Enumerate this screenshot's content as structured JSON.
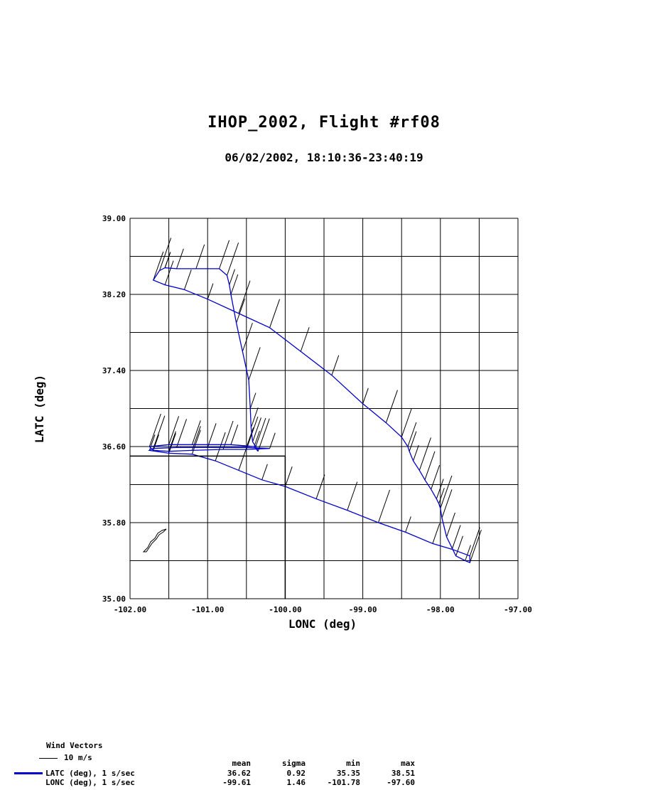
{
  "chart_data": {
    "type": "line",
    "title": "IHOP_2002, Flight #rf08",
    "subtitle": "06/02/2002, 18:10:36-23:40:19",
    "xlabel": "LONC (deg)",
    "ylabel": "LATC (deg)",
    "xlim": [
      -102.0,
      -97.0
    ],
    "ylim": [
      35.0,
      39.0
    ],
    "x_ticks": [
      "-102.00",
      "-101.00",
      "-100.00",
      "-99.00",
      "-98.00",
      "-97.00"
    ],
    "y_ticks": [
      "35.00",
      "35.80",
      "36.60",
      "37.40",
      "38.20",
      "39.00"
    ],
    "grid": true,
    "line_color": "#0000cc",
    "series": [
      {
        "x": [
          -101.55,
          -101.4,
          -101.15,
          -100.85,
          -100.75,
          -100.72,
          -100.7,
          -100.63,
          -100.55,
          -100.47,
          -100.45,
          -100.44,
          -100.42,
          -100.38,
          -100.35,
          -100.4,
          -100.7,
          -101.2,
          -101.5,
          -101.75,
          -101.7,
          -101.5,
          -101.2,
          -100.8,
          -100.5,
          -100.2,
          -100.5,
          -101.0,
          -101.4,
          -101.7,
          -101.75,
          -101.5,
          -101.2,
          -100.9,
          -100.6,
          -100.3,
          -100.0,
          -99.6,
          -99.2,
          -98.8,
          -98.45,
          -98.1,
          -97.85,
          -97.62,
          -97.62,
          -97.68,
          -97.8,
          -97.92,
          -97.98,
          -98.0,
          -98.02,
          -98.05,
          -98.12,
          -98.2,
          -98.27,
          -98.35,
          -98.4,
          -98.42,
          -98.5,
          -98.7,
          -99.0,
          -99.4,
          -99.8,
          -100.2,
          -100.6,
          -101.0,
          -101.3,
          -101.55,
          -101.7,
          -101.62,
          -101.55
        ],
        "y": [
          38.48,
          38.47,
          38.47,
          38.47,
          38.4,
          38.3,
          38.2,
          37.9,
          37.6,
          37.3,
          37.0,
          36.8,
          36.65,
          36.6,
          36.55,
          36.6,
          36.62,
          36.62,
          36.62,
          36.6,
          36.56,
          36.55,
          36.56,
          36.57,
          36.57,
          36.58,
          36.59,
          36.59,
          36.59,
          36.58,
          36.56,
          36.53,
          36.52,
          36.45,
          36.35,
          36.25,
          36.18,
          36.05,
          35.93,
          35.8,
          35.7,
          35.58,
          35.52,
          35.45,
          35.38,
          35.4,
          35.45,
          35.65,
          35.85,
          35.95,
          36.0,
          36.05,
          36.15,
          36.25,
          36.35,
          36.45,
          36.55,
          36.6,
          36.7,
          36.85,
          37.05,
          37.35,
          37.6,
          37.85,
          38.0,
          38.15,
          38.25,
          38.3,
          38.35,
          38.45,
          38.48
        ]
      }
    ],
    "wind_vectors_label": "Wind Vectors",
    "wind_scale_label": "10 m/s",
    "stats_headers": [
      "mean",
      "sigma",
      "min",
      "max"
    ],
    "stats": [
      {
        "name": "LATC (deg), 1 s/sec",
        "values": [
          "36.62",
          "0.92",
          "35.35",
          "38.51"
        ]
      },
      {
        "name": "LONC (deg), 1 s/sec",
        "values": [
          "-99.61",
          "1.46",
          "-101.78",
          "-97.60"
        ]
      }
    ]
  }
}
